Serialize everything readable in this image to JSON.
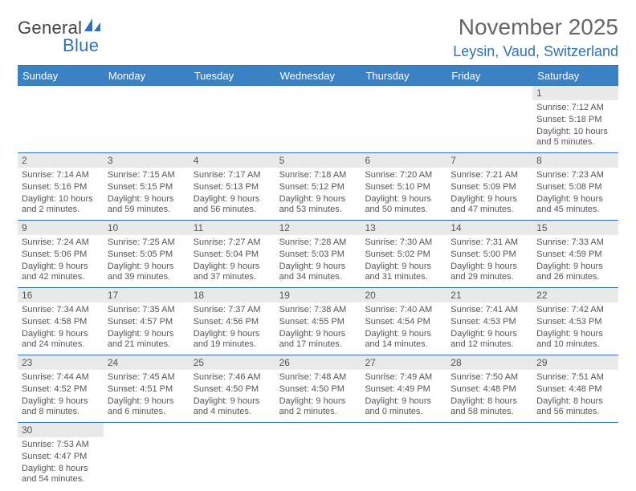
{
  "logo": {
    "general": "General",
    "blue": "Blue"
  },
  "title": "November 2025",
  "location": "Leysin, Vaud, Switzerland",
  "colors": {
    "brand_blue": "#2f72b6",
    "header_bg": "#3b82c4",
    "text": "#555555",
    "daynum_bg": "#e9e9e9",
    "page_bg": "#ffffff"
  },
  "days_of_week": [
    "Sunday",
    "Monday",
    "Tuesday",
    "Wednesday",
    "Thursday",
    "Friday",
    "Saturday"
  ],
  "weeks": [
    [
      null,
      null,
      null,
      null,
      null,
      null,
      {
        "n": "1",
        "sr": "Sunrise: 7:12 AM",
        "ss": "Sunset: 5:18 PM",
        "dl": "Daylight: 10 hours and 5 minutes."
      }
    ],
    [
      {
        "n": "2",
        "sr": "Sunrise: 7:14 AM",
        "ss": "Sunset: 5:16 PM",
        "dl": "Daylight: 10 hours and 2 minutes."
      },
      {
        "n": "3",
        "sr": "Sunrise: 7:15 AM",
        "ss": "Sunset: 5:15 PM",
        "dl": "Daylight: 9 hours and 59 minutes."
      },
      {
        "n": "4",
        "sr": "Sunrise: 7:17 AM",
        "ss": "Sunset: 5:13 PM",
        "dl": "Daylight: 9 hours and 56 minutes."
      },
      {
        "n": "5",
        "sr": "Sunrise: 7:18 AM",
        "ss": "Sunset: 5:12 PM",
        "dl": "Daylight: 9 hours and 53 minutes."
      },
      {
        "n": "6",
        "sr": "Sunrise: 7:20 AM",
        "ss": "Sunset: 5:10 PM",
        "dl": "Daylight: 9 hours and 50 minutes."
      },
      {
        "n": "7",
        "sr": "Sunrise: 7:21 AM",
        "ss": "Sunset: 5:09 PM",
        "dl": "Daylight: 9 hours and 47 minutes."
      },
      {
        "n": "8",
        "sr": "Sunrise: 7:23 AM",
        "ss": "Sunset: 5:08 PM",
        "dl": "Daylight: 9 hours and 45 minutes."
      }
    ],
    [
      {
        "n": "9",
        "sr": "Sunrise: 7:24 AM",
        "ss": "Sunset: 5:06 PM",
        "dl": "Daylight: 9 hours and 42 minutes."
      },
      {
        "n": "10",
        "sr": "Sunrise: 7:25 AM",
        "ss": "Sunset: 5:05 PM",
        "dl": "Daylight: 9 hours and 39 minutes."
      },
      {
        "n": "11",
        "sr": "Sunrise: 7:27 AM",
        "ss": "Sunset: 5:04 PM",
        "dl": "Daylight: 9 hours and 37 minutes."
      },
      {
        "n": "12",
        "sr": "Sunrise: 7:28 AM",
        "ss": "Sunset: 5:03 PM",
        "dl": "Daylight: 9 hours and 34 minutes."
      },
      {
        "n": "13",
        "sr": "Sunrise: 7:30 AM",
        "ss": "Sunset: 5:02 PM",
        "dl": "Daylight: 9 hours and 31 minutes."
      },
      {
        "n": "14",
        "sr": "Sunrise: 7:31 AM",
        "ss": "Sunset: 5:00 PM",
        "dl": "Daylight: 9 hours and 29 minutes."
      },
      {
        "n": "15",
        "sr": "Sunrise: 7:33 AM",
        "ss": "Sunset: 4:59 PM",
        "dl": "Daylight: 9 hours and 26 minutes."
      }
    ],
    [
      {
        "n": "16",
        "sr": "Sunrise: 7:34 AM",
        "ss": "Sunset: 4:58 PM",
        "dl": "Daylight: 9 hours and 24 minutes."
      },
      {
        "n": "17",
        "sr": "Sunrise: 7:35 AM",
        "ss": "Sunset: 4:57 PM",
        "dl": "Daylight: 9 hours and 21 minutes."
      },
      {
        "n": "18",
        "sr": "Sunrise: 7:37 AM",
        "ss": "Sunset: 4:56 PM",
        "dl": "Daylight: 9 hours and 19 minutes."
      },
      {
        "n": "19",
        "sr": "Sunrise: 7:38 AM",
        "ss": "Sunset: 4:55 PM",
        "dl": "Daylight: 9 hours and 17 minutes."
      },
      {
        "n": "20",
        "sr": "Sunrise: 7:40 AM",
        "ss": "Sunset: 4:54 PM",
        "dl": "Daylight: 9 hours and 14 minutes."
      },
      {
        "n": "21",
        "sr": "Sunrise: 7:41 AM",
        "ss": "Sunset: 4:53 PM",
        "dl": "Daylight: 9 hours and 12 minutes."
      },
      {
        "n": "22",
        "sr": "Sunrise: 7:42 AM",
        "ss": "Sunset: 4:53 PM",
        "dl": "Daylight: 9 hours and 10 minutes."
      }
    ],
    [
      {
        "n": "23",
        "sr": "Sunrise: 7:44 AM",
        "ss": "Sunset: 4:52 PM",
        "dl": "Daylight: 9 hours and 8 minutes."
      },
      {
        "n": "24",
        "sr": "Sunrise: 7:45 AM",
        "ss": "Sunset: 4:51 PM",
        "dl": "Daylight: 9 hours and 6 minutes."
      },
      {
        "n": "25",
        "sr": "Sunrise: 7:46 AM",
        "ss": "Sunset: 4:50 PM",
        "dl": "Daylight: 9 hours and 4 minutes."
      },
      {
        "n": "26",
        "sr": "Sunrise: 7:48 AM",
        "ss": "Sunset: 4:50 PM",
        "dl": "Daylight: 9 hours and 2 minutes."
      },
      {
        "n": "27",
        "sr": "Sunrise: 7:49 AM",
        "ss": "Sunset: 4:49 PM",
        "dl": "Daylight: 9 hours and 0 minutes."
      },
      {
        "n": "28",
        "sr": "Sunrise: 7:50 AM",
        "ss": "Sunset: 4:48 PM",
        "dl": "Daylight: 8 hours and 58 minutes."
      },
      {
        "n": "29",
        "sr": "Sunrise: 7:51 AM",
        "ss": "Sunset: 4:48 PM",
        "dl": "Daylight: 8 hours and 56 minutes."
      }
    ],
    [
      {
        "n": "30",
        "sr": "Sunrise: 7:53 AM",
        "ss": "Sunset: 4:47 PM",
        "dl": "Daylight: 8 hours and 54 minutes."
      },
      null,
      null,
      null,
      null,
      null,
      null
    ]
  ]
}
